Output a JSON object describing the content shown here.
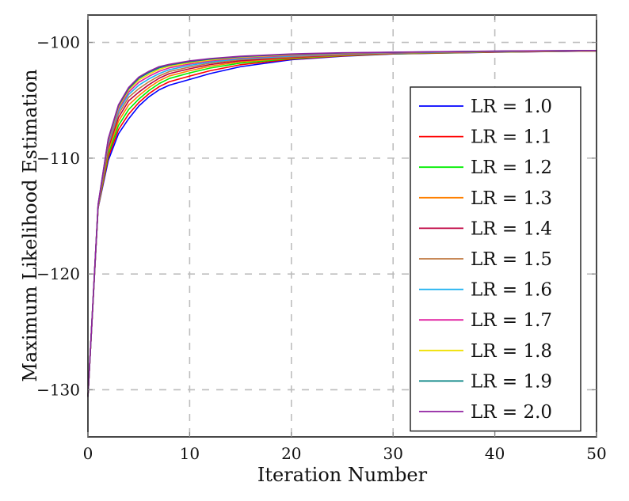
{
  "chart_data": {
    "type": "line",
    "title": "",
    "xlabel": "Iteration Number",
    "ylabel": "Maximum Likelihood Estimation",
    "xlim": [
      0,
      50
    ],
    "ylim": [
      -134.07,
      -97.64
    ],
    "xticks": [
      0,
      10,
      20,
      30,
      40,
      50
    ],
    "xtick_labels": [
      "0",
      "10",
      "20",
      "30",
      "40",
      "50"
    ],
    "yticks": [
      -100,
      -110,
      -120,
      -130
    ],
    "ytick_labels": [
      "−100",
      "−110",
      "−120",
      "−130"
    ],
    "grid": true,
    "grid_style": "dashed",
    "legend_position": "inner right",
    "x": [
      0,
      1,
      2,
      3,
      4,
      5,
      6,
      7,
      8,
      10,
      12,
      15,
      20,
      25,
      30,
      40,
      50
    ],
    "series": [
      {
        "name": "LR = 1.0",
        "color": "#0000ff",
        "values": [
          -130.6,
          -114.3,
          -110.2,
          -107.9,
          -106.6,
          -105.5,
          -104.7,
          -104.1,
          -103.7,
          -103.2,
          -102.7,
          -102.1,
          -101.5,
          -101.2,
          -101.0,
          -100.85,
          -100.75
        ]
      },
      {
        "name": "LR = 1.1",
        "color": "#ff0000",
        "values": [
          -130.6,
          -114.27,
          -109.92,
          -107.54,
          -106.2,
          -105.2,
          -104.43,
          -103.83,
          -103.4,
          -102.91,
          -102.45,
          -101.93,
          -101.45,
          -101.17,
          -100.99,
          -100.84,
          -100.745
        ]
      },
      {
        "name": "LR = 1.2",
        "color": "#00ee00",
        "values": [
          -130.6,
          -114.24,
          -109.64,
          -107.18,
          -105.8,
          -104.9,
          -104.16,
          -103.56,
          -103.12,
          -102.64,
          -102.22,
          -101.79,
          -101.4,
          -101.14,
          -100.97,
          -100.83,
          -100.74
        ]
      },
      {
        "name": "LR = 1.3",
        "color": "#ff8000",
        "values": [
          -130.6,
          -114.21,
          -109.36,
          -106.83,
          -105.41,
          -104.6,
          -103.9,
          -103.32,
          -102.9,
          -102.45,
          -102.06,
          -101.68,
          -101.35,
          -101.11,
          -100.95,
          -100.82,
          -100.735
        ]
      },
      {
        "name": "LR = 1.4",
        "color": "#bf0040",
        "values": [
          -130.6,
          -114.18,
          -109.1,
          -106.5,
          -105.05,
          -104.3,
          -103.65,
          -103.1,
          -102.7,
          -102.28,
          -101.92,
          -101.58,
          -101.3,
          -101.08,
          -100.93,
          -100.81,
          -100.73
        ]
      },
      {
        "name": "LR = 1.5",
        "color": "#c07840",
        "values": [
          -130.6,
          -114.15,
          -108.9,
          -106.2,
          -104.75,
          -104.0,
          -103.4,
          -102.9,
          -102.52,
          -102.13,
          -101.8,
          -101.49,
          -101.25,
          -101.05,
          -100.92,
          -100.8,
          -100.725
        ]
      },
      {
        "name": "LR = 1.6",
        "color": "#1ab0f0",
        "values": [
          -130.6,
          -114.12,
          -108.72,
          -105.95,
          -104.5,
          -103.7,
          -103.15,
          -102.7,
          -102.36,
          -101.99,
          -101.7,
          -101.41,
          -101.18,
          -101.0,
          -100.9,
          -100.79,
          -100.72
        ]
      },
      {
        "name": "LR = 1.7",
        "color": "#e020a0",
        "values": [
          -130.6,
          -114.09,
          -108.58,
          -105.75,
          -104.3,
          -103.45,
          -102.93,
          -102.5,
          -102.2,
          -101.87,
          -101.6,
          -101.34,
          -101.12,
          -100.97,
          -100.88,
          -100.78,
          -100.715
        ]
      },
      {
        "name": "LR = 1.8",
        "color": "#f0e000",
        "values": [
          -130.6,
          -114.06,
          -108.46,
          -105.6,
          -104.12,
          -103.25,
          -102.75,
          -102.33,
          -102.06,
          -101.76,
          -101.52,
          -101.28,
          -101.07,
          -100.94,
          -100.87,
          -100.77,
          -100.71
        ]
      },
      {
        "name": "LR = 1.9",
        "color": "#008080",
        "values": [
          -130.6,
          -114.03,
          -108.37,
          -105.48,
          -104.0,
          -103.1,
          -102.6,
          -102.2,
          -101.96,
          -101.67,
          -101.45,
          -101.23,
          -101.03,
          -100.92,
          -100.86,
          -100.76,
          -100.705
        ]
      },
      {
        "name": "LR = 2.0",
        "color": "#9020a0",
        "values": [
          -130.6,
          -114.0,
          -108.3,
          -105.4,
          -103.9,
          -103.0,
          -102.5,
          -102.1,
          -101.9,
          -101.6,
          -101.4,
          -101.2,
          -101.0,
          -100.9,
          -100.85,
          -100.75,
          -100.7
        ]
      }
    ]
  },
  "colors": {
    "axis": "#1a1a1a",
    "grid": "#bdbdbd",
    "background": "#ffffff"
  }
}
